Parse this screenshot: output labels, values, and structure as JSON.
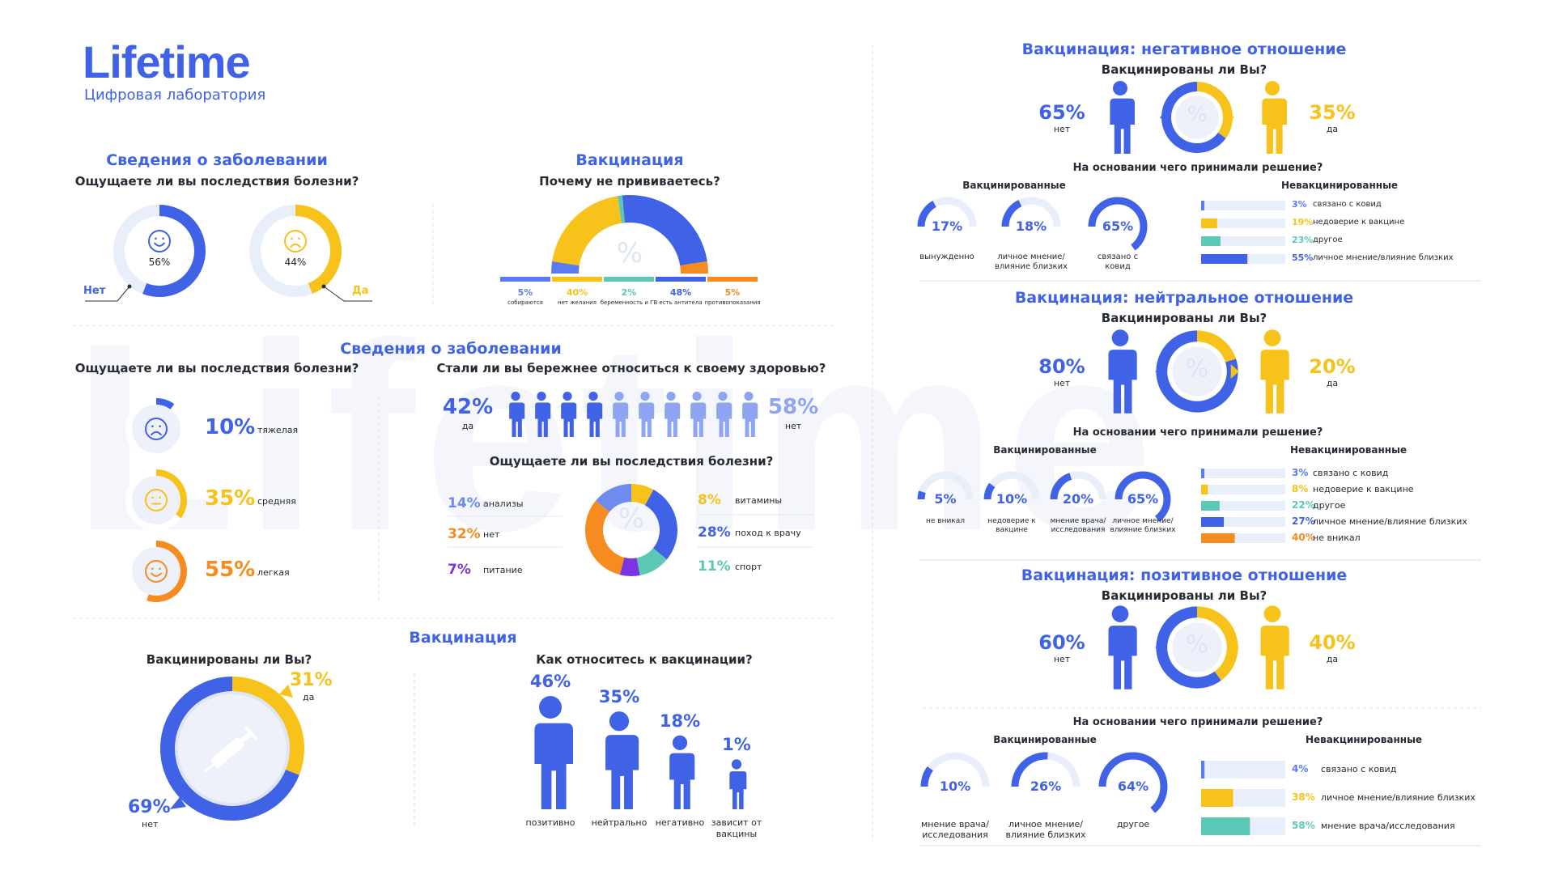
{
  "brand": {
    "name": "Lifetime",
    "subtitle": "Цифровая лаборатория",
    "watermark": "Lifetime"
  },
  "colors": {
    "blue": "#3f62e6",
    "yellow": "#f7c21a",
    "orange": "#f68b1f",
    "teal": "#5cc8b6",
    "purple": "#7a35e0",
    "light_blue": "#8fa5f2",
    "track": "#e9eefb"
  },
  "s1": {
    "title": "Сведения о заболевании",
    "question": "Ощущаете ли вы последствия болезни?",
    "no": {
      "value": "56%",
      "label": "Нет",
      "fraction": 0.56,
      "icon": "smile-icon"
    },
    "yes": {
      "value": "44%",
      "label": "Да",
      "fraction": 0.44,
      "icon": "sad-icon"
    }
  },
  "s2": {
    "title": "Вакцинация",
    "question": "Почему не прививаетесь?",
    "chart_data": {
      "type": "pie",
      "categories": [
        "собираются",
        "нет желания",
        "беременность и ГВ",
        "есть антитела",
        "противопоказания"
      ],
      "values": [
        5,
        40,
        2,
        48,
        5
      ],
      "labels": [
        "5%",
        "40%",
        "2%",
        "48%",
        "5%"
      ]
    }
  },
  "s3": {
    "title": "Сведения о заболевании",
    "severity": {
      "question": "Ощущаете ли вы последствия болезни?",
      "chart_data": {
        "type": "pie",
        "categories": [
          "тяжелая",
          "средняя",
          "легкая"
        ],
        "values": [
          10,
          35,
          55
        ],
        "labels": [
          "10%",
          "35%",
          "55%"
        ]
      }
    },
    "careful": {
      "question": "Стали ли вы бережнее относиться к своему здоровью?",
      "yes": {
        "value": "42%",
        "label": "да",
        "fraction": 0.42
      },
      "no": {
        "value": "58%",
        "label": "нет",
        "fraction": 0.58
      }
    },
    "effects": {
      "question": "Ощущаете ли вы последствия болезни?",
      "chart_data": {
        "type": "pie",
        "categories": [
          "анализы",
          "нет",
          "питание",
          "витамины",
          "поход к врачу",
          "спорт"
        ],
        "values": [
          14,
          32,
          7,
          8,
          28,
          11
        ],
        "labels": [
          "14%",
          "32%",
          "7%",
          "8%",
          "28%",
          "11%"
        ]
      }
    }
  },
  "s4": {
    "title": "Вакцинация",
    "vaccinated": {
      "question": "Вакцинированы ли Вы?",
      "yes": {
        "value": "31%",
        "label": "да",
        "fraction": 0.31
      },
      "no": {
        "value": "69%",
        "label": "нет",
        "fraction": 0.69
      }
    },
    "attitude": {
      "question": "Как относитесь к вакцинации?",
      "chart_data": {
        "type": "bar",
        "categories": [
          "позитивно",
          "нейтрально",
          "негативно",
          "зависит от вакцины"
        ],
        "values": [
          46,
          35,
          18,
          1
        ],
        "labels": [
          "46%",
          "35%",
          "18%",
          "1%"
        ]
      }
    }
  },
  "neg": {
    "title": "Вакцинация: негативное отношение",
    "question": "Вакцинированы ли Вы?",
    "no": {
      "value": "65%",
      "label": "нет",
      "fraction": 0.65
    },
    "yes": {
      "value": "35%",
      "label": "да",
      "fraction": 0.35
    },
    "basis": "На основании чего принимали решение?",
    "vacc_label": "Вакцинированные",
    "unvacc_label": "Невакцинированные",
    "vacc": [
      {
        "value": "17%",
        "label": "вынужденно",
        "fraction": 0.17
      },
      {
        "value": "18%",
        "label": "личное мнение/ влияние близких",
        "fraction": 0.18
      },
      {
        "value": "65%",
        "label": "связано с ковид",
        "fraction": 0.65
      }
    ],
    "unvacc": [
      {
        "value": "3%",
        "label": "связано с ковид",
        "fraction": 0.03,
        "color": "#5b7cf0"
      },
      {
        "value": "19%",
        "label": "недоверие к вакцине",
        "fraction": 0.19,
        "color": "#f7c21a"
      },
      {
        "value": "23%",
        "label": "другое",
        "fraction": 0.23,
        "color": "#5cc8b6"
      },
      {
        "value": "55%",
        "label": "личное мнение/влияние близких",
        "fraction": 0.55,
        "color": "#3f62e6"
      }
    ]
  },
  "neu": {
    "title": "Вакцинация: нейтральное отношение",
    "question": "Вакцинированы ли Вы?",
    "no": {
      "value": "80%",
      "label": "нет",
      "fraction": 0.8
    },
    "yes": {
      "value": "20%",
      "label": "да",
      "fraction": 0.2
    },
    "basis": "На основании чего принимали решение?",
    "vacc_label": "Вакцинированные",
    "unvacc_label": "Невакцинированные",
    "vacc": [
      {
        "value": "5%",
        "label": "не вникал",
        "fraction": 0.05
      },
      {
        "value": "10%",
        "label": "недоверие к вакцине",
        "fraction": 0.1
      },
      {
        "value": "20%",
        "label": "мнение врача/ исследования",
        "fraction": 0.2
      },
      {
        "value": "65%",
        "label": "личное мнение/ влияние близких",
        "fraction": 0.65
      }
    ],
    "unvacc": [
      {
        "value": "3%",
        "label": "связано с ковид",
        "fraction": 0.03,
        "color": "#5b7cf0"
      },
      {
        "value": "8%",
        "label": "недоверие к вакцине",
        "fraction": 0.08,
        "color": "#f7c21a"
      },
      {
        "value": "22%",
        "label": "другое",
        "fraction": 0.22,
        "color": "#5cc8b6"
      },
      {
        "value": "27%",
        "label": "личное мнение/влияние близких",
        "fraction": 0.27,
        "color": "#3f62e6"
      },
      {
        "value": "40%",
        "label": "не вникал",
        "fraction": 0.4,
        "color": "#f68b1f"
      }
    ]
  },
  "pos": {
    "title": "Вакцинация: позитивное отношение",
    "question": "Вакцинированы ли Вы?",
    "no": {
      "value": "60%",
      "label": "нет",
      "fraction": 0.6
    },
    "yes": {
      "value": "40%",
      "label": "да",
      "fraction": 0.4
    },
    "basis": "На основании чего принимали решение?",
    "vacc_label": "Вакцинированные",
    "unvacc_label": "Невакцинированные",
    "vacc": [
      {
        "value": "10%",
        "label": "мнение врача/ исследования",
        "fraction": 0.1
      },
      {
        "value": "26%",
        "label": "личное мнение/ влияние близких",
        "fraction": 0.26
      },
      {
        "value": "64%",
        "label": "другое",
        "fraction": 0.64
      }
    ],
    "unvacc": [
      {
        "value": "4%",
        "label": "связано с ковид",
        "fraction": 0.04,
        "color": "#5b7cf0"
      },
      {
        "value": "38%",
        "label": "личное мнение/влияние близких",
        "fraction": 0.38,
        "color": "#f7c21a"
      },
      {
        "value": "58%",
        "label": "мнение врача/исследования",
        "fraction": 0.58,
        "color": "#5cc8b6"
      }
    ]
  }
}
